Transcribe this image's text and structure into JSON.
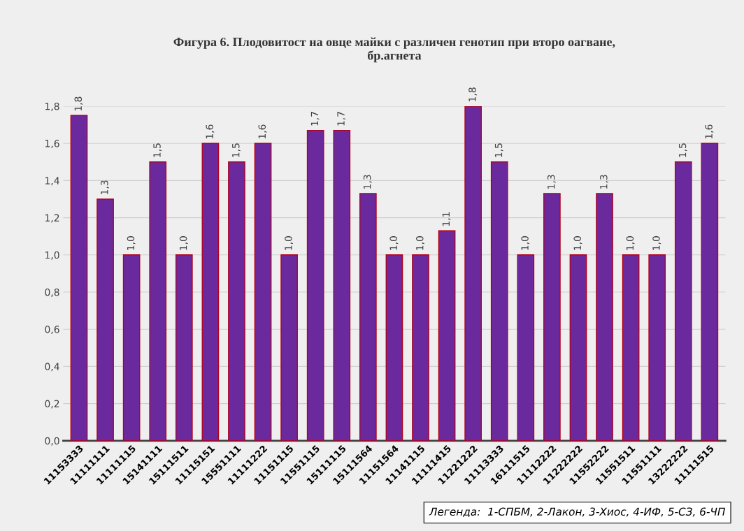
{
  "chart_data": {
    "type": "bar",
    "title": "Фигура 6. Плодовитост на овце майки с различен генотип при второ оагване,\nбр.агнета",
    "categories": [
      "11153333",
      "11111111",
      "11111115",
      "15141111",
      "15111511",
      "11115151",
      "15551111",
      "11111222",
      "11151115",
      "11551115",
      "15111115",
      "15111564",
      "11151564",
      "11141115",
      "11111415",
      "11221222",
      "11113333",
      "16111515",
      "11112222",
      "11222222",
      "11552222",
      "11551511",
      "11551111",
      "13222222",
      "11111515"
    ],
    "values": [
      1.75,
      1.3,
      1.0,
      1.5,
      1.0,
      1.6,
      1.5,
      1.6,
      1.0,
      1.67,
      1.67,
      1.33,
      1.0,
      1.0,
      1.13,
      1.8,
      1.5,
      1.0,
      1.33,
      1.0,
      1.33,
      1.0,
      1.0,
      1.5,
      1.6
    ],
    "value_labels": [
      "1,8",
      "1,3",
      "1,0",
      "1,5",
      "1,0",
      "1,6",
      "1,5",
      "1,6",
      "1,0",
      "1,7",
      "1,7",
      "1,3",
      "1,0",
      "1,0",
      "1,1",
      "1,8",
      "1,5",
      "1,0",
      "1,3",
      "1,0",
      "1,3",
      "1,0",
      "1,0",
      "1,5",
      "1,6"
    ],
    "color": "#6a2a9e",
    "ylim": [
      0,
      1.8
    ],
    "yticks": [
      {
        "value": 0,
        "label": "0,0"
      },
      {
        "value": 0.2,
        "label": "0,2"
      },
      {
        "value": 0.4,
        "label": "0,4"
      },
      {
        "value": 0.6,
        "label": "0,6"
      },
      {
        "value": 0.8,
        "label": "0,8"
      },
      {
        "value": 1.0,
        "label": "1,0"
      },
      {
        "value": 1.2,
        "label": "1,2"
      },
      {
        "value": 1.4,
        "label": "1,4"
      },
      {
        "value": 1.6,
        "label": "1,6"
      },
      {
        "value": 1.8,
        "label": "1,8"
      }
    ],
    "grid": "y",
    "annotations": [
      "Легенда:  1-СПБМ, 2-Лакон, 3-Хиос, 4-ИФ, 5-СЗ, 6-ЧП"
    ]
  }
}
